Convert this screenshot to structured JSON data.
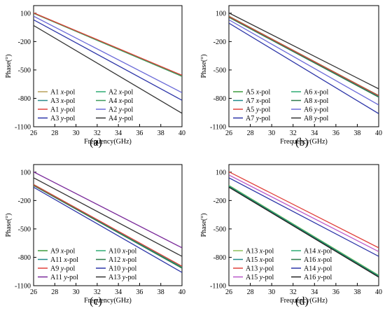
{
  "chart_data": [
    {
      "type": "line",
      "panel_label": "(a)",
      "xlabel": "Frequency(GHz)",
      "ylabel": "Phase(°)",
      "xlim": [
        26,
        40
      ],
      "ylim": [
        -1100,
        180
      ],
      "xticks": [
        "26",
        "28",
        "30",
        "32",
        "34",
        "36",
        "38",
        "40"
      ],
      "yticks": [
        "100",
        "-200",
        "-500",
        "-800",
        "-1100"
      ],
      "legend_position": "bottom-left",
      "series": [
        {
          "name": "A1 x-pol",
          "pol": "x",
          "color": "#b8a15a",
          "x": [
            26,
            40
          ],
          "y": [
            104,
            -558
          ]
        },
        {
          "name": "A2 x-pol",
          "pol": "x",
          "color": "#2eaa73",
          "x": [
            26,
            40
          ],
          "y": [
            102,
            -562
          ]
        },
        {
          "name": "A3 x-pol",
          "pol": "x",
          "color": "#2a8a8a",
          "x": [
            26,
            40
          ],
          "y": [
            100,
            -565
          ]
        },
        {
          "name": "A4 x-pol",
          "pol": "x",
          "color": "#3c9a5a",
          "x": [
            26,
            40
          ],
          "y": [
            98,
            -568
          ]
        },
        {
          "name": "A1 y-pol",
          "pol": "y",
          "color": "#e0413a",
          "x": [
            26,
            40
          ],
          "y": [
            103,
            -556
          ]
        },
        {
          "name": "A2 y-pol",
          "pol": "y",
          "color": "#6a6ad8",
          "x": [
            26,
            40
          ],
          "y": [
            68,
            -740
          ]
        },
        {
          "name": "A3 y-pol",
          "pol": "y",
          "color": "#2c35a8",
          "x": [
            26,
            40
          ],
          "y": [
            30,
            -820
          ]
        },
        {
          "name": "A4 y-pol",
          "pol": "y",
          "color": "#333333",
          "x": [
            26,
            40
          ],
          "y": [
            -30,
            -958
          ]
        }
      ]
    },
    {
      "type": "line",
      "panel_label": "(b)",
      "xlabel": "Frequency(GHz)",
      "ylabel": "Phase(°)",
      "xlim": [
        26,
        40
      ],
      "ylim": [
        -1100,
        180
      ],
      "xticks": [
        "26",
        "28",
        "30",
        "32",
        "34",
        "36",
        "38",
        "40"
      ],
      "yticks": [
        "100",
        "-200",
        "-500",
        "-800",
        "-1100"
      ],
      "legend_position": "bottom-left",
      "series": [
        {
          "name": "A5 x-pol",
          "pol": "x",
          "color": "#3c9a3c",
          "x": [
            26,
            40
          ],
          "y": [
            68,
            -770
          ]
        },
        {
          "name": "A6 x-pol",
          "pol": "x",
          "color": "#2eaa73",
          "x": [
            26,
            40
          ],
          "y": [
            64,
            -776
          ]
        },
        {
          "name": "A7 x-pol",
          "pol": "x",
          "color": "#1f8a8a",
          "x": [
            26,
            40
          ],
          "y": [
            60,
            -782
          ]
        },
        {
          "name": "A8 x-pol",
          "pol": "x",
          "color": "#2d7a4a",
          "x": [
            26,
            40
          ],
          "y": [
            56,
            -788
          ]
        },
        {
          "name": "A5 y-pol",
          "pol": "y",
          "color": "#e0413a",
          "x": [
            26,
            40
          ],
          "y": [
            66,
            -772
          ]
        },
        {
          "name": "A6 y-pol",
          "pol": "y",
          "color": "#6a6ad8",
          "x": [
            26,
            40
          ],
          "y": [
            30,
            -870
          ]
        },
        {
          "name": "A7 y-pol",
          "pol": "y",
          "color": "#2c35a8",
          "x": [
            26,
            40
          ],
          "y": [
            -5,
            -962
          ]
        },
        {
          "name": "A8 y-pol",
          "pol": "y",
          "color": "#333333",
          "x": [
            26,
            40
          ],
          "y": [
            102,
            -700
          ]
        }
      ]
    },
    {
      "type": "line",
      "panel_label": "(c)",
      "xlabel": "Frequency(GHz)",
      "ylabel": "Phase(°)",
      "xlim": [
        26,
        40
      ],
      "ylim": [
        -1100,
        180
      ],
      "xticks": [
        "26",
        "28",
        "30",
        "32",
        "34",
        "36",
        "38",
        "40"
      ],
      "yticks": [
        "100",
        "-200",
        "-500",
        "-800",
        "-1100"
      ],
      "legend_position": "bottom-left",
      "series": [
        {
          "name": "A9 x-pol",
          "pol": "x",
          "color": "#3c9a3c",
          "x": [
            26,
            40
          ],
          "y": [
            -30,
            -900
          ]
        },
        {
          "name": "A10 x-pol",
          "pol": "x",
          "color": "#2eaa73",
          "x": [
            26,
            40
          ],
          "y": [
            -34,
            -905
          ]
        },
        {
          "name": "A11 x-pol",
          "pol": "x",
          "color": "#1f8a8a",
          "x": [
            26,
            40
          ],
          "y": [
            -38,
            -910
          ]
        },
        {
          "name": "A12 x-pol",
          "pol": "x",
          "color": "#2d7a4a",
          "x": [
            26,
            40
          ],
          "y": [
            -42,
            -915
          ]
        },
        {
          "name": "A9 y-pol",
          "pol": "y",
          "color": "#e0413a",
          "x": [
            26,
            40
          ],
          "y": [
            -32,
            -895
          ]
        },
        {
          "name": "A10 y-pol",
          "pol": "y",
          "color": "#2c35a8",
          "x": [
            26,
            40
          ],
          "y": [
            -60,
            -960
          ]
        },
        {
          "name": "A11 y-pol",
          "pol": "y",
          "color": "#7a2a9a",
          "x": [
            26,
            40
          ],
          "y": [
            102,
            -700
          ]
        },
        {
          "name": "A13 y-pol",
          "pol": "y",
          "color": "#333333",
          "x": [
            26,
            40
          ],
          "y": [
            40,
            -790
          ]
        }
      ]
    },
    {
      "type": "line",
      "panel_label": "(d)",
      "xlabel": "Frequency(GHz)",
      "ylabel": "Phase(°)",
      "xlim": [
        26,
        40
      ],
      "ylim": [
        -1100,
        180
      ],
      "xticks": [
        "26",
        "28",
        "30",
        "32",
        "34",
        "36",
        "38",
        "40"
      ],
      "yticks": [
        "100",
        "-200",
        "-500",
        "-800",
        "-1100"
      ],
      "legend_position": "bottom-left",
      "series": [
        {
          "name": "A13 x-pol",
          "pol": "x",
          "color": "#8cbf5a",
          "x": [
            26,
            40
          ],
          "y": [
            -40,
            -990
          ]
        },
        {
          "name": "A14 x-pol",
          "pol": "x",
          "color": "#2eaa73",
          "x": [
            26,
            40
          ],
          "y": [
            -45,
            -995
          ]
        },
        {
          "name": "A15 x-pol",
          "pol": "x",
          "color": "#1f8a8a",
          "x": [
            26,
            40
          ],
          "y": [
            -50,
            -1000
          ]
        },
        {
          "name": "A16 x-pol",
          "pol": "x",
          "color": "#2d7a4a",
          "x": [
            26,
            40
          ],
          "y": [
            -55,
            -1005
          ]
        },
        {
          "name": "A13 y-pol",
          "pol": "y",
          "color": "#e0413a",
          "x": [
            26,
            40
          ],
          "y": [
            104,
            -700
          ]
        },
        {
          "name": "A14 y-pol",
          "pol": "y",
          "color": "#2c35a8",
          "x": [
            26,
            40
          ],
          "y": [
            40,
            -790
          ]
        },
        {
          "name": "A15 y-pol",
          "pol": "y",
          "color": "#b857c9",
          "x": [
            26,
            40
          ],
          "y": [
            70,
            -740
          ]
        },
        {
          "name": "A16 y-pol",
          "pol": "y",
          "color": "#222222",
          "x": [
            26,
            40
          ],
          "y": [
            -60,
            -1010
          ]
        }
      ]
    }
  ]
}
